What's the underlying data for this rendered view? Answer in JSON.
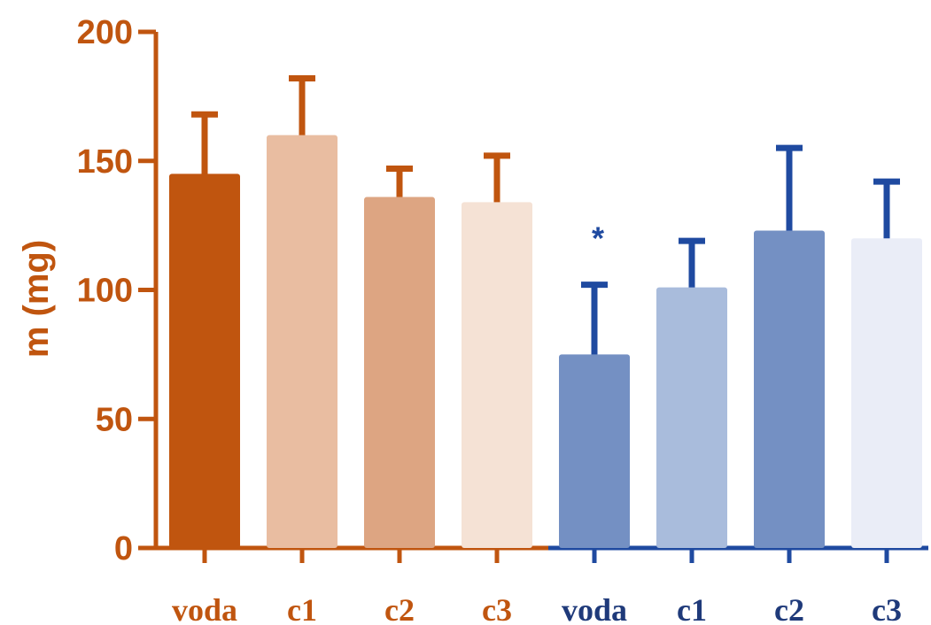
{
  "chart_data": {
    "type": "bar",
    "title": "",
    "xlabel": "",
    "ylabel": "m (mg)",
    "ylim": [
      0,
      200
    ],
    "yticks": [
      0,
      50,
      100,
      150,
      200
    ],
    "grid": false,
    "axis_colors": {
      "left": "#c0550f",
      "right": "#1f4aa0"
    },
    "groups": [
      {
        "color_axis": "#c0550f",
        "label_color": "#c0550f"
      },
      {
        "color_axis": "#1f4aa0",
        "label_color": "#1f3a7a"
      }
    ],
    "bars": [
      {
        "label": "voda",
        "group": 0,
        "value": 145,
        "error": 23,
        "color": "#c0550f",
        "err_color": "#c0550f"
      },
      {
        "label": "c1",
        "group": 0,
        "value": 160,
        "error": 22,
        "color": "#e9bda1",
        "err_color": "#c0550f"
      },
      {
        "label": "c2",
        "group": 0,
        "value": 136,
        "error": 11,
        "color": "#dda582",
        "err_color": "#c0550f"
      },
      {
        "label": "c3",
        "group": 0,
        "value": 134,
        "error": 18,
        "color": "#f5e2d5",
        "err_color": "#c0550f"
      },
      {
        "label": "voda",
        "group": 1,
        "value": 75,
        "error": 27,
        "color": "#7490c3",
        "err_color": "#1f4aa0",
        "annotation": "*"
      },
      {
        "label": "c1",
        "group": 1,
        "value": 101,
        "error": 18,
        "color": "#a9bcdc",
        "err_color": "#1f4aa0"
      },
      {
        "label": "c2",
        "group": 1,
        "value": 123,
        "error": 32,
        "color": "#7490c3",
        "err_color": "#1f4aa0"
      },
      {
        "label": "c3",
        "group": 1,
        "value": 120,
        "error": 22,
        "color": "#eaedf7",
        "err_color": "#1f4aa0"
      }
    ]
  }
}
